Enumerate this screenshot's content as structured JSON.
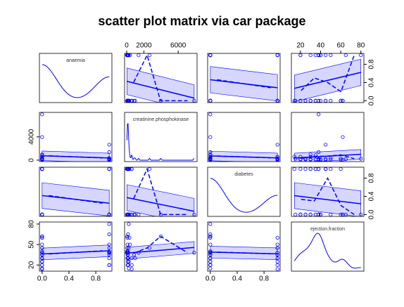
{
  "chart_data": {
    "type": "scatter_matrix",
    "title": "scatter plot matrix via car package",
    "color": "#0000ff",
    "band_color": "#ccccff",
    "variables": [
      {
        "name": "anaemia",
        "lim": [
          -0.04,
          1.04
        ],
        "xticks": [
          {
            "value": 0,
            "label": "0.0"
          },
          {
            "value": 0.4,
            "label": "0.4"
          },
          {
            "value": 0.8,
            "label": "0.8"
          }
        ],
        "yticks": [
          {
            "value": 0,
            "label": "0.0"
          },
          {
            "value": 0.4,
            "label": "0.4"
          },
          {
            "value": 0.8,
            "label": "0.8"
          }
        ],
        "values": [
          0,
          0,
          1,
          1,
          0,
          1,
          0,
          0,
          1,
          0,
          1,
          0,
          0,
          1,
          0,
          1,
          1,
          0,
          0,
          0,
          1,
          0,
          1,
          0,
          0,
          1,
          0,
          0,
          1,
          0,
          1,
          0,
          0,
          1,
          1,
          0,
          0,
          0,
          1,
          0
        ]
      },
      {
        "name": "creatinine.phosphokinase",
        "lim": [
          -250,
          8200
        ],
        "xticks": [
          0,
          2000,
          6000
        ],
        "yticks": [
          0,
          4000
        ],
        "values": [
          582,
          7861,
          146,
          111,
          160,
          47,
          246,
          315,
          157,
          123,
          81,
          231,
          981,
          168,
          80,
          379,
          149,
          582,
          125,
          52,
          128,
          220,
          63,
          148,
          112,
          122,
          60,
          70,
          23,
          249,
          159,
          94,
          855,
          2656,
          235,
          124,
          571,
          115,
          1380,
          3964
        ]
      },
      {
        "name": "diabetes",
        "lim": [
          -0.04,
          1.04
        ],
        "xticks": [
          {
            "value": 0,
            "label": "0.0"
          },
          {
            "value": 0.4,
            "label": "0.4"
          },
          {
            "value": 0.8,
            "label": "0.8"
          }
        ],
        "yticks": [
          {
            "value": 0,
            "label": "0.0"
          },
          {
            "value": 0.4,
            "label": "0.4"
          },
          {
            "value": 0.8,
            "label": "0.8"
          }
        ],
        "values": [
          0,
          0,
          0,
          0,
          1,
          0,
          0,
          1,
          0,
          0,
          0,
          1,
          0,
          1,
          0,
          0,
          0,
          1,
          0,
          0,
          1,
          1,
          0,
          1,
          0,
          0,
          1,
          0,
          1,
          0,
          0,
          1,
          0,
          1,
          0,
          0,
          1,
          1,
          0,
          0
        ]
      },
      {
        "name": "ejection.fraction",
        "lim": [
          11,
          83
        ],
        "xticks": [
          20,
          40,
          60,
          80
        ],
        "yticks": [
          20,
          50,
          80
        ],
        "values": [
          20,
          38,
          20,
          20,
          20,
          40,
          15,
          60,
          65,
          35,
          38,
          25,
          30,
          38,
          30,
          50,
          38,
          14,
          25,
          62,
          35,
          45,
          38,
          30,
          38,
          40,
          45,
          60,
          38,
          25,
          30,
          50,
          35,
          45,
          80,
          40,
          30,
          35,
          38,
          62
        ]
      }
    ]
  }
}
